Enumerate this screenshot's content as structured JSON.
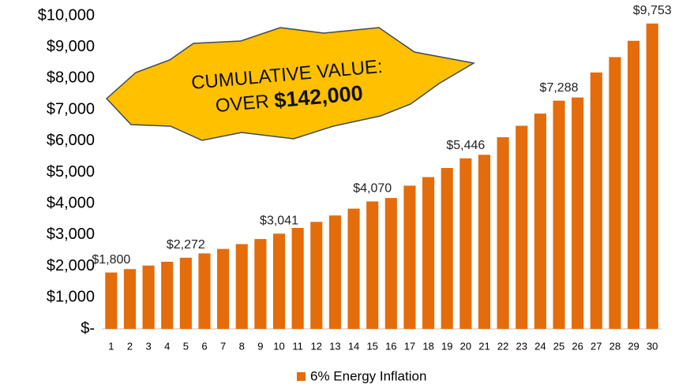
{
  "chart_data": {
    "type": "bar",
    "categories": [
      "1",
      "2",
      "3",
      "4",
      "5",
      "6",
      "7",
      "8",
      "9",
      "10",
      "11",
      "12",
      "13",
      "14",
      "15",
      "16",
      "17",
      "18",
      "19",
      "20",
      "21",
      "22",
      "23",
      "24",
      "25",
      "26",
      "27",
      "28",
      "29",
      "30"
    ],
    "series": [
      {
        "name": "6% Energy Inflation",
        "color": "#e46c0a",
        "values": [
          1800,
          1908,
          2022,
          2144,
          2272,
          2409,
          2553,
          2707,
          2869,
          3041,
          3224,
          3417,
          3622,
          3839,
          4070,
          4180,
          4573,
          4847,
          5138,
          5446,
          5560,
          6119,
          6486,
          6876,
          7288,
          7390,
          8189,
          8680,
          9201,
          9753
        ],
        "value_labels": [
          "$1,800",
          null,
          null,
          null,
          "$2,272",
          null,
          null,
          null,
          null,
          "$3,041",
          null,
          null,
          null,
          null,
          "$4,070",
          null,
          null,
          null,
          null,
          "$5,446",
          null,
          null,
          null,
          null,
          "$7,288",
          null,
          null,
          null,
          null,
          "$9,753"
        ]
      }
    ],
    "ylim": [
      0,
      10000
    ],
    "yticks": [
      {
        "value": 0,
        "label": "$-"
      },
      {
        "value": 1000,
        "label": "$1,000"
      },
      {
        "value": 2000,
        "label": "$2,000"
      },
      {
        "value": 3000,
        "label": "$3,000"
      },
      {
        "value": 4000,
        "label": "$4,000"
      },
      {
        "value": 5000,
        "label": "$5,000"
      },
      {
        "value": 6000,
        "label": "$6,000"
      },
      {
        "value": 7000,
        "label": "$7,000"
      },
      {
        "value": 8000,
        "label": "$8,000"
      },
      {
        "value": 9000,
        "label": "$9,000"
      },
      {
        "value": 10000,
        "label": "$10,000"
      }
    ],
    "grid": false,
    "legend": "bottom",
    "annotation": {
      "line1": "CUMULATIVE VALUE:",
      "line2": "OVER",
      "amount": "$142,000"
    }
  }
}
